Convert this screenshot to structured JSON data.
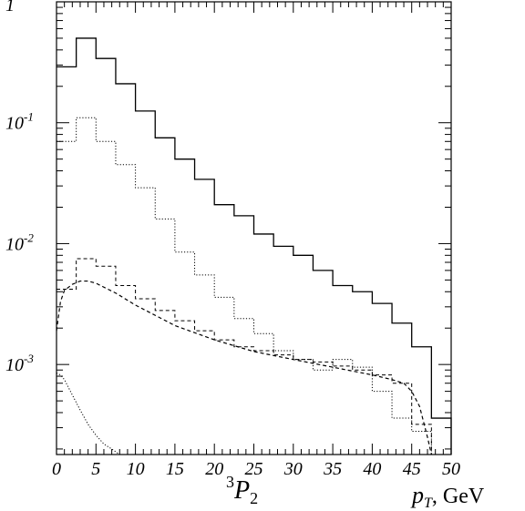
{
  "chart_data": {
    "type": "line",
    "title": "",
    "xlabel": "p_T, GeV",
    "xlabel_parts": {
      "var": "p",
      "sub": "T",
      "unit": ", GeV"
    },
    "ylabel": "",
    "annotation": {
      "pre": "3",
      "var": "P",
      "sub": "2"
    },
    "xlim": [
      0,
      50
    ],
    "ylim": [
      0.00018,
      1
    ],
    "yscale": "log",
    "grid": false,
    "x_ticks": [
      "0",
      "5",
      "10",
      "15",
      "20",
      "25",
      "30",
      "35",
      "40",
      "45",
      "50"
    ],
    "y_ticks": [
      {
        "value": 1,
        "base": "1",
        "exp": ""
      },
      {
        "value": 0.1,
        "base": "10",
        "exp": "-1"
      },
      {
        "value": 0.01,
        "base": "10",
        "exp": "-2"
      },
      {
        "value": 0.001,
        "base": "10",
        "exp": "-3"
      }
    ],
    "bin_edges": [
      0,
      2.5,
      5,
      7.5,
      10,
      12.5,
      15,
      17.5,
      20,
      22.5,
      25,
      27.5,
      30,
      32.5,
      35,
      37.5,
      40,
      42.5,
      45,
      47.5,
      50
    ],
    "series": [
      {
        "style": "solid-histogram",
        "values": [
          0.29,
          0.5,
          0.34,
          0.21,
          0.125,
          0.075,
          0.05,
          0.034,
          0.021,
          0.017,
          0.012,
          0.0095,
          0.008,
          0.006,
          0.0045,
          0.004,
          0.0032,
          0.0022,
          0.0014,
          0.00036
        ]
      },
      {
        "style": "dotted-histogram",
        "values": [
          0.07,
          0.11,
          0.07,
          0.045,
          0.029,
          0.016,
          0.0085,
          0.0055,
          0.0036,
          0.0024,
          0.0018,
          0.0013,
          0.0011,
          0.0009,
          0.0011,
          0.00095,
          0.0006,
          0.00036,
          0.00028,
          0.00018
        ]
      },
      {
        "style": "dashed-histogram",
        "values": [
          0.0042,
          0.0075,
          0.0065,
          0.0045,
          0.0035,
          0.0028,
          0.0023,
          0.0019,
          0.0016,
          0.0014,
          0.0013,
          0.0012,
          0.0011,
          0.00105,
          0.00097,
          0.0009,
          0.00082,
          0.0007,
          0.00032,
          0.00018
        ]
      },
      {
        "style": "dashed-curve",
        "x": [
          0,
          0.5,
          1,
          2,
          3,
          4,
          5,
          7.5,
          10,
          15,
          20,
          25,
          30,
          35,
          40,
          42.5,
          44,
          45,
          46,
          47,
          47.5
        ],
        "values": [
          0.0019,
          0.0033,
          0.0041,
          0.0046,
          0.0049,
          0.0049,
          0.0047,
          0.0039,
          0.0031,
          0.0021,
          0.0016,
          0.00128,
          0.0011,
          0.00095,
          0.00082,
          0.00075,
          0.0007,
          0.0006,
          0.00045,
          0.00025,
          0.00015
        ]
      },
      {
        "style": "dotted-curve",
        "x": [
          0,
          0.5,
          1,
          2,
          3,
          4,
          5,
          6,
          7,
          8
        ],
        "values": [
          0.00085,
          0.00082,
          0.00075,
          0.00056,
          0.00042,
          0.00032,
          0.00026,
          0.00022,
          0.0002,
          0.00018
        ]
      }
    ]
  }
}
